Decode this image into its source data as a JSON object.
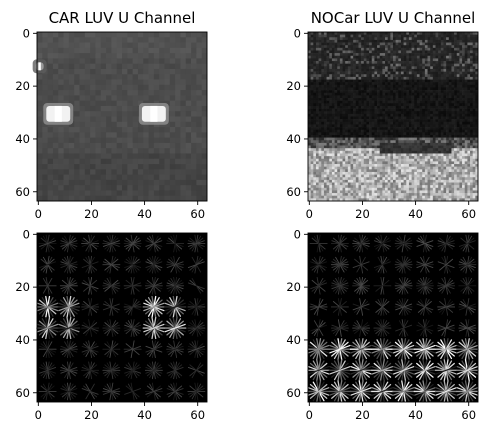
{
  "chart_data": [
    {
      "type": "heatmap",
      "title": "CAR LUV U Channel",
      "xlabel": "",
      "ylabel": "",
      "xlim": [
        -0.5,
        63.5
      ],
      "ylim": [
        63.5,
        -0.5
      ],
      "xticks": [
        0,
        20,
        40,
        60
      ],
      "yticks": [
        0,
        20,
        40,
        60
      ],
      "colormap": "gray",
      "description_values": {
        "background_level": 0.3,
        "highlights": [
          {
            "x": 8,
            "y": 31,
            "w": 9,
            "h": 6,
            "level": 0.95
          },
          {
            "x": 44,
            "y": 31,
            "w": 9,
            "h": 6,
            "level": 0.95
          },
          {
            "x": 1,
            "y": 13,
            "w": 3,
            "h": 3,
            "level": 0.6
          }
        ]
      }
    },
    {
      "type": "heatmap",
      "title": "NOCar LUV U Channel",
      "xlabel": "",
      "ylabel": "",
      "xlim": [
        -0.5,
        63.5
      ],
      "ylim": [
        63.5,
        -0.5
      ],
      "xticks": [
        0,
        20,
        40,
        60
      ],
      "yticks": [
        0,
        20,
        40,
        60
      ],
      "colormap": "gray",
      "description_values": {
        "top_band_level": 0.1,
        "bright_region_start_row": 44,
        "bright_region_level": 0.8
      }
    },
    {
      "type": "heatmap",
      "title": "",
      "xlabel": "",
      "ylabel": "",
      "xlim": [
        -0.5,
        63.5
      ],
      "ylim": [
        63.5,
        -0.5
      ],
      "xticks": [
        0,
        20,
        40,
        60
      ],
      "yticks": [
        0,
        20,
        40,
        60
      ],
      "colormap": "gray",
      "description_values": {
        "kind": "hog",
        "cell_size": 8,
        "strong_rows": [
          3,
          4
        ],
        "strong_cols": [
          0,
          1,
          5,
          6
        ]
      }
    },
    {
      "type": "heatmap",
      "title": "",
      "xlabel": "",
      "ylabel": "",
      "xlim": [
        -0.5,
        63.5
      ],
      "ylim": [
        63.5,
        -0.5
      ],
      "xticks": [
        0,
        20,
        40,
        60
      ],
      "yticks": [
        0,
        20,
        40,
        60
      ],
      "colormap": "gray",
      "description_values": {
        "kind": "hog",
        "cell_size": 8,
        "strong_rows": [
          5,
          6,
          7
        ],
        "strong_cols": [
          0,
          1,
          2,
          3,
          4,
          5,
          6,
          7
        ]
      }
    }
  ]
}
